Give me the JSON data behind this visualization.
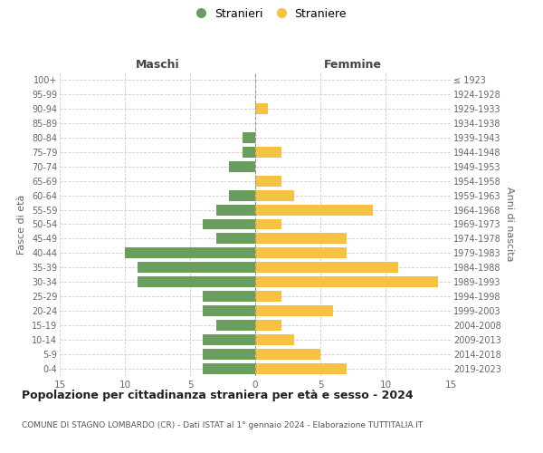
{
  "age_groups": [
    "0-4",
    "5-9",
    "10-14",
    "15-19",
    "20-24",
    "25-29",
    "30-34",
    "35-39",
    "40-44",
    "45-49",
    "50-54",
    "55-59",
    "60-64",
    "65-69",
    "70-74",
    "75-79",
    "80-84",
    "85-89",
    "90-94",
    "95-99",
    "100+"
  ],
  "birth_years": [
    "2019-2023",
    "2014-2018",
    "2009-2013",
    "2004-2008",
    "1999-2003",
    "1994-1998",
    "1989-1993",
    "1984-1988",
    "1979-1983",
    "1974-1978",
    "1969-1973",
    "1964-1968",
    "1959-1963",
    "1954-1958",
    "1949-1953",
    "1944-1948",
    "1939-1943",
    "1934-1938",
    "1929-1933",
    "1924-1928",
    "≤ 1923"
  ],
  "maschi": [
    4,
    4,
    4,
    3,
    4,
    4,
    9,
    9,
    10,
    3,
    4,
    3,
    2,
    0,
    2,
    1,
    1,
    0,
    0,
    0,
    0
  ],
  "femmine": [
    7,
    5,
    3,
    2,
    6,
    2,
    14,
    11,
    7,
    7,
    2,
    9,
    3,
    2,
    0,
    2,
    0,
    0,
    1,
    0,
    0
  ],
  "male_color": "#6a9e5e",
  "female_color": "#f5c242",
  "title": "Popolazione per cittadinanza straniera per età e sesso - 2024",
  "subtitle": "COMUNE DI STAGNO LOMBARDO (CR) - Dati ISTAT al 1° gennaio 2024 - Elaborazione TUTTITALIA.IT",
  "ylabel_left": "Fasce di età",
  "ylabel_right": "Anni di nascita",
  "xlabel_left": "Maschi",
  "xlabel_right": "Femmine",
  "legend_maschi": "Stranieri",
  "legend_femmine": "Straniere",
  "xlim": 15,
  "background_color": "#ffffff",
  "grid_color": "#cccccc"
}
